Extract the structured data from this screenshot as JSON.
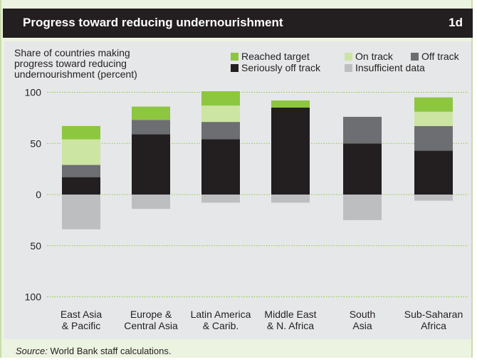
{
  "header": {
    "title": "Progress toward reducing undernourishment",
    "number": "1d"
  },
  "source": {
    "label": "Source:",
    "text": "World Bank staff calculations."
  },
  "colors": {
    "Reached target": "#8dc63f",
    "On track": "#cce5a3",
    "Off track": "#6d6e71",
    "Seriously off track": "#231f20",
    "Insufficient data": "#bcbec0"
  },
  "chart_data": {
    "type": "bar",
    "stacked": true,
    "ylabel": [
      "Share of countries making",
      "progress toward reducing",
      "undernourishment (percent)"
    ],
    "categories": [
      [
        "East Asia",
        "& Pacific"
      ],
      [
        "Europe &",
        "Central Asia"
      ],
      [
        "Latin America",
        "& Carib."
      ],
      [
        "Middle East",
        "& N. Africa"
      ],
      [
        "South",
        "Asia"
      ],
      [
        "Sub-Saharan",
        "Africa"
      ]
    ],
    "yticks": [
      {
        "value": 100,
        "label": "100"
      },
      {
        "value": 50,
        "label": "50"
      },
      {
        "value": 0,
        "label": "0"
      },
      {
        "value": -50,
        "label": "50"
      },
      {
        "value": -100,
        "label": "100"
      }
    ],
    "ylim": [
      -100,
      100
    ],
    "grid": true,
    "legend_position": "top-right",
    "legend": [
      "Reached target",
      "On track",
      "Off track",
      "Seriously off track",
      "Insufficient data"
    ],
    "series": [
      {
        "name": "Seriously off track",
        "values": [
          17,
          59,
          54,
          85,
          50,
          43
        ]
      },
      {
        "name": "Off track",
        "values": [
          12,
          14,
          17,
          0,
          26,
          24
        ]
      },
      {
        "name": "On track",
        "values": [
          25,
          0,
          16,
          0,
          0,
          14
        ]
      },
      {
        "name": "Reached target",
        "values": [
          13,
          13,
          14,
          7,
          0,
          14
        ]
      },
      {
        "name": "Insufficient data",
        "values": [
          -34,
          -14,
          -8,
          -8,
          -25,
          -6
        ]
      }
    ]
  }
}
